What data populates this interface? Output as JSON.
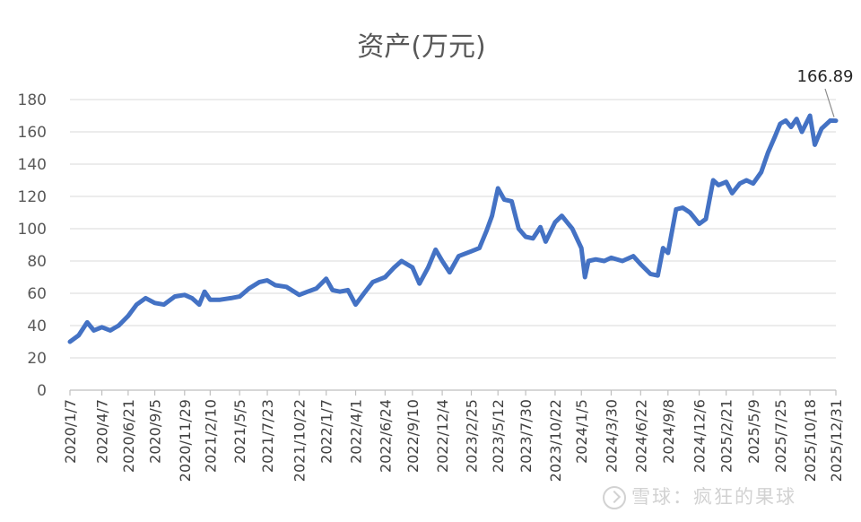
{
  "chart_data": {
    "type": "line",
    "title": "资产(万元)",
    "xlabel": "",
    "ylabel": "",
    "ylim": [
      0,
      180
    ],
    "yticks": [
      0,
      20,
      40,
      60,
      80,
      100,
      120,
      140,
      160,
      180
    ],
    "grid": true,
    "legend": "none",
    "x_tick_labels": [
      "2020/1/7",
      "2020/4/7",
      "2020/6/21",
      "2020/9/5",
      "2020/11/29",
      "2021/2/10",
      "2021/5/5",
      "2021/7/23",
      "2021/10/22",
      "2022/1/7",
      "2022/4/1",
      "2022/6/24",
      "2022/9/10",
      "2022/12/4",
      "2023/2/25",
      "2023/5/12",
      "2023/7/30",
      "2023/10/22",
      "2024/1/5",
      "2024/3/30",
      "2024/6/22",
      "2024/9/8",
      "2024/12/6",
      "2025/2/21",
      "2025/5/9",
      "2025/7/25",
      "2025/10/18",
      "2025/12/31"
    ],
    "series": [
      {
        "color": "#4472C4",
        "points": [
          [
            "2020/1/7",
            30
          ],
          [
            "2020/2/1",
            34
          ],
          [
            "2020/2/25",
            42
          ],
          [
            "2020/3/15",
            37
          ],
          [
            "2020/4/7",
            39
          ],
          [
            "2020/5/1",
            37
          ],
          [
            "2020/5/25",
            40
          ],
          [
            "2020/6/21",
            46
          ],
          [
            "2020/7/15",
            53
          ],
          [
            "2020/8/10",
            57
          ],
          [
            "2020/9/5",
            54
          ],
          [
            "2020/10/1",
            53
          ],
          [
            "2020/11/1",
            58
          ],
          [
            "2020/11/29",
            59
          ],
          [
            "2020/12/20",
            57
          ],
          [
            "2021/1/10",
            53
          ],
          [
            "2021/1/25",
            61
          ],
          [
            "2021/2/10",
            56
          ],
          [
            "2021/3/10",
            56
          ],
          [
            "2021/4/10",
            57
          ],
          [
            "2021/5/5",
            58
          ],
          [
            "2021/6/1",
            63
          ],
          [
            "2021/7/1",
            67
          ],
          [
            "2021/7/23",
            68
          ],
          [
            "2021/8/15",
            65
          ],
          [
            "2021/9/15",
            64
          ],
          [
            "2021/10/22",
            59
          ],
          [
            "2021/11/15",
            61
          ],
          [
            "2021/12/10",
            63
          ],
          [
            "2022/1/7",
            69
          ],
          [
            "2022/1/25",
            62
          ],
          [
            "2022/2/15",
            61
          ],
          [
            "2022/3/10",
            62
          ],
          [
            "2022/4/1",
            53
          ],
          [
            "2022/4/25",
            60
          ],
          [
            "2022/5/20",
            67
          ],
          [
            "2022/6/24",
            70
          ],
          [
            "2022/7/20",
            76
          ],
          [
            "2022/8/10",
            80
          ],
          [
            "2022/9/10",
            76
          ],
          [
            "2022/9/30",
            66
          ],
          [
            "2022/10/25",
            76
          ],
          [
            "2022/11/15",
            87
          ],
          [
            "2022/12/4",
            80
          ],
          [
            "2022/12/25",
            73
          ],
          [
            "2023/1/20",
            83
          ],
          [
            "2023/2/25",
            86
          ],
          [
            "2023/3/20",
            88
          ],
          [
            "2023/4/10",
            99
          ],
          [
            "2023/4/25",
            108
          ],
          [
            "2023/5/12",
            125
          ],
          [
            "2023/5/30",
            118
          ],
          [
            "2023/6/20",
            117
          ],
          [
            "2023/7/10",
            100
          ],
          [
            "2023/7/30",
            95
          ],
          [
            "2023/8/20",
            94
          ],
          [
            "2023/9/10",
            101
          ],
          [
            "2023/9/25",
            92
          ],
          [
            "2023/10/22",
            104
          ],
          [
            "2023/11/10",
            108
          ],
          [
            "2023/12/10",
            100
          ],
          [
            "2024/1/5",
            88
          ],
          [
            "2024/1/15",
            70
          ],
          [
            "2024/1/25",
            80
          ],
          [
            "2024/2/15",
            81
          ],
          [
            "2024/3/10",
            80
          ],
          [
            "2024/3/30",
            82
          ],
          [
            "2024/5/1",
            80
          ],
          [
            "2024/6/1",
            83
          ],
          [
            "2024/6/22",
            78
          ],
          [
            "2024/7/20",
            72
          ],
          [
            "2024/8/10",
            71
          ],
          [
            "2024/8/25",
            88
          ],
          [
            "2024/9/8",
            85
          ],
          [
            "2024/10/1",
            112
          ],
          [
            "2024/10/20",
            113
          ],
          [
            "2024/11/10",
            110
          ],
          [
            "2024/12/6",
            103
          ],
          [
            "2024/12/25",
            106
          ],
          [
            "2025/1/15",
            130
          ],
          [
            "2025/1/30",
            127
          ],
          [
            "2025/2/21",
            129
          ],
          [
            "2025/3/10",
            122
          ],
          [
            "2025/4/1",
            128
          ],
          [
            "2025/4/20",
            130
          ],
          [
            "2025/5/9",
            128
          ],
          [
            "2025/6/1",
            135
          ],
          [
            "2025/6/20",
            147
          ],
          [
            "2025/7/10",
            157
          ],
          [
            "2025/7/25",
            165
          ],
          [
            "2025/8/10",
            167
          ],
          [
            "2025/8/25",
            163
          ],
          [
            "2025/9/10",
            168
          ],
          [
            "2025/9/25",
            160
          ],
          [
            "2025/10/18",
            170
          ],
          [
            "2025/11/1",
            152
          ],
          [
            "2025/11/20",
            162
          ],
          [
            "2025/12/15",
            167
          ],
          [
            "2025/12/31",
            166.89
          ]
        ]
      }
    ],
    "annotations": [
      {
        "x": "2025/12/31",
        "y": 166.89,
        "text": "166.89"
      }
    ]
  },
  "watermark": {
    "text": "雪球：疯狂的果球",
    "icon": "xueqiu-logo-icon"
  }
}
